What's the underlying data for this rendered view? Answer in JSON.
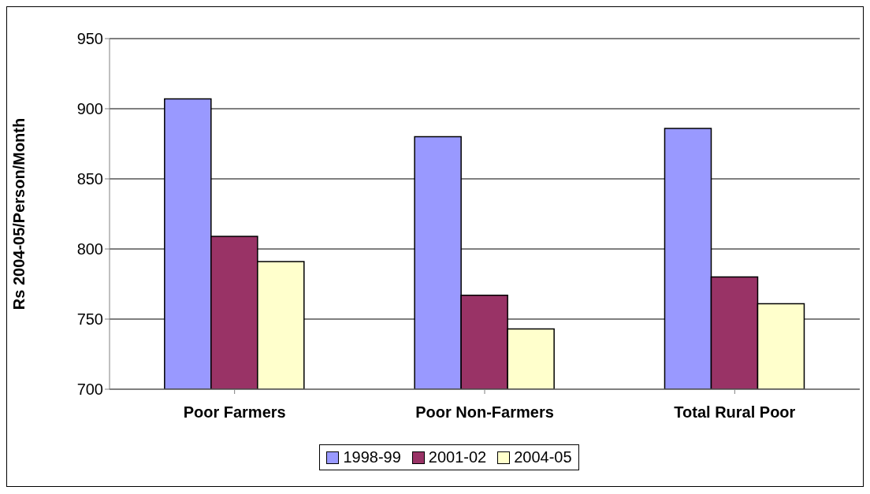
{
  "chart_data": {
    "type": "bar",
    "ylabel": "Rs 2004-05/Person/Month",
    "categories": [
      "Poor Farmers",
      "Poor Non-Farmers",
      "Total Rural Poor"
    ],
    "series": [
      {
        "name": "1998-99",
        "color": "#9999ff",
        "values": [
          907,
          880,
          886
        ]
      },
      {
        "name": "2001-02",
        "color": "#993366",
        "values": [
          809,
          767,
          780
        ]
      },
      {
        "name": "2004-05",
        "color": "#ffffcc",
        "values": [
          791,
          743,
          761
        ]
      }
    ],
    "ylim": [
      700,
      950
    ],
    "yticks": [
      700,
      750,
      800,
      850,
      900,
      950
    ],
    "grid": "y",
    "legend": "bottom"
  }
}
